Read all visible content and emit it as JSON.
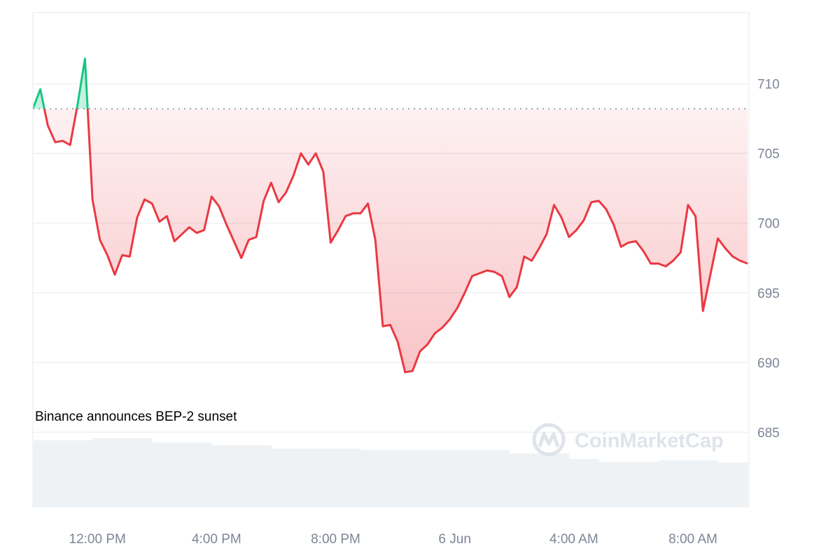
{
  "chart_data": {
    "type": "line",
    "x_tick_labels": [
      "12:00 PM",
      "4:00 PM",
      "8:00 PM",
      "6 Jun",
      "4:00 AM",
      "8:00 AM"
    ],
    "y_tick_labels": [
      "685",
      "690",
      "695",
      "700",
      "705",
      "710"
    ],
    "y_ticks": [
      685,
      690,
      695,
      700,
      705,
      710
    ],
    "ylim": [
      679.6,
      715.1
    ],
    "baseline": 708.2,
    "grid": true,
    "y_axis_side": "right",
    "annotation": "Binance announces BEP-2 sunset",
    "watermark": "CoinMarketCap",
    "colors": {
      "up": "#16c784",
      "down": "#ea3943",
      "baseline": "#9aa0ab",
      "grid": "#eef0f3",
      "volume": "#eff2f5",
      "watermark": "#dfe3ea"
    },
    "x": [
      "09:50",
      "10:05",
      "10:20",
      "10:35",
      "10:50",
      "11:05",
      "11:20",
      "11:35",
      "11:50",
      "12:05",
      "12:20",
      "12:35",
      "12:50",
      "13:05",
      "13:20",
      "13:35",
      "13:50",
      "14:05",
      "14:20",
      "14:35",
      "14:50",
      "15:05",
      "15:20",
      "15:35",
      "15:50",
      "16:05",
      "16:20",
      "16:35",
      "16:50",
      "17:05",
      "17:20",
      "17:35",
      "17:50",
      "18:05",
      "18:20",
      "18:35",
      "18:50",
      "19:05",
      "19:20",
      "19:35",
      "19:50",
      "20:05",
      "20:20",
      "20:35",
      "20:50",
      "21:05",
      "21:20",
      "21:35",
      "21:50",
      "22:05",
      "22:20",
      "22:35",
      "22:50",
      "23:05",
      "23:20",
      "23:35",
      "23:50",
      "6 Jun 00:05",
      "6 Jun 00:20",
      "6 Jun 00:35",
      "6 Jun 00:50",
      "6 Jun 01:05",
      "6 Jun 01:20",
      "6 Jun 01:35",
      "6 Jun 01:50",
      "6 Jun 02:05",
      "6 Jun 02:20",
      "6 Jun 02:35",
      "6 Jun 02:50",
      "6 Jun 03:05",
      "6 Jun 03:20",
      "6 Jun 03:35",
      "6 Jun 03:50",
      "6 Jun 04:05",
      "6 Jun 04:20",
      "6 Jun 04:35",
      "6 Jun 04:50",
      "6 Jun 05:05",
      "6 Jun 05:20",
      "6 Jun 05:35",
      "6 Jun 05:50",
      "6 Jun 06:05",
      "6 Jun 06:20",
      "6 Jun 06:35",
      "6 Jun 06:50",
      "6 Jun 07:05",
      "6 Jun 07:20",
      "6 Jun 07:35",
      "6 Jun 07:50",
      "6 Jun 08:05",
      "6 Jun 08:20",
      "6 Jun 08:35",
      "6 Jun 08:50",
      "6 Jun 09:05",
      "6 Jun 09:20",
      "6 Jun 09:35",
      "6 Jun 09:50"
    ],
    "values": [
      708.2,
      709.6,
      707.0,
      705.8,
      705.9,
      705.6,
      708.5,
      711.8,
      701.7,
      698.8,
      697.7,
      696.3,
      697.7,
      697.6,
      700.4,
      701.7,
      701.4,
      700.1,
      700.5,
      698.7,
      699.2,
      699.7,
      699.3,
      699.5,
      701.9,
      701.2,
      699.9,
      698.7,
      697.5,
      698.8,
      699.0,
      701.6,
      702.9,
      701.5,
      702.2,
      703.4,
      705.0,
      704.2,
      705.0,
      703.7,
      698.6,
      699.5,
      700.5,
      700.7,
      700.7,
      701.4,
      698.8,
      692.6,
      692.7,
      691.5,
      689.3,
      689.4,
      690.8,
      691.3,
      692.1,
      692.5,
      693.1,
      693.9,
      695.0,
      696.2,
      696.4,
      696.6,
      696.5,
      696.2,
      694.7,
      695.4,
      697.6,
      697.3,
      698.2,
      699.2,
      701.3,
      700.4,
      699.0,
      699.5,
      700.2,
      701.5,
      701.6,
      701.0,
      699.9,
      698.3,
      698.6,
      698.7,
      698.0,
      697.1,
      697.1,
      696.9,
      697.3,
      697.9,
      701.3,
      700.5,
      693.7,
      696.3,
      698.9,
      698.2,
      697.6,
      697.3,
      697.1
    ],
    "volume_relative": [
      0.97,
      0.97,
      1.0,
      1.0,
      0.94,
      0.94,
      0.9,
      0.9,
      0.85,
      0.85,
      0.85,
      0.83,
      0.83,
      0.83,
      0.83,
      0.83,
      0.78,
      0.78,
      0.7,
      0.66,
      0.66,
      0.68,
      0.68,
      0.65
    ]
  }
}
